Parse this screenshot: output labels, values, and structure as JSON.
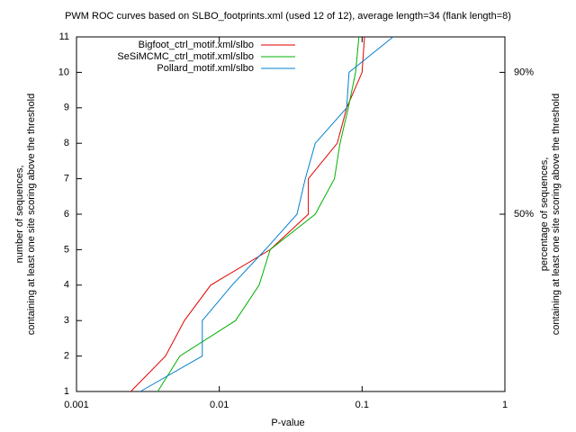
{
  "chart_data": {
    "type": "line",
    "title": "PWM ROC curves based on SLBO_footprints.xml (used 12 of 12), average length=34 (flank length=8)",
    "x_label": "P-value",
    "y_label": [
      "number of sequences,",
      "containing at least one site scoring above the threshold"
    ],
    "y2_label": [
      "percentage of sequences,",
      "containing at least one site scoring above the threshold"
    ],
    "x_log": true,
    "xlim": [
      0.001,
      1
    ],
    "xticks": [
      0.001,
      0.01,
      0.1,
      1
    ],
    "ylim": [
      1,
      11
    ],
    "yticks": [
      1,
      2,
      3,
      4,
      5,
      6,
      7,
      8,
      9,
      10,
      11
    ],
    "y2lim": [
      0,
      100
    ],
    "y2ticks": [
      {
        "value": 50,
        "label": "50%"
      },
      {
        "value": 90,
        "label": "90%"
      }
    ],
    "legend": "top-left",
    "series": [
      {
        "name": "Bigfoot_ctrl_motif.xml/slbo",
        "color": "#e00000",
        "x": [
          0.0024,
          0.0042,
          0.0057,
          0.0087,
          0.0227,
          0.042,
          0.042,
          0.067,
          0.078,
          0.1,
          0.104
        ],
        "values": [
          1,
          2,
          3,
          4,
          5,
          6,
          7,
          8,
          9,
          10,
          11
        ]
      },
      {
        "name": "SeSiMCMC_ctrl_motif.xml/slbo",
        "color": "#00b000",
        "x": [
          0.0037,
          0.0053,
          0.013,
          0.019,
          0.0227,
          0.047,
          0.064,
          0.07,
          0.08,
          0.09,
          0.095
        ],
        "values": [
          1,
          2,
          3,
          4,
          5,
          6,
          7,
          8,
          9,
          10,
          11
        ]
      },
      {
        "name": "Pollard_motif.xml/slbo",
        "color": "#0080d0",
        "x": [
          0.0028,
          0.0076,
          0.0076,
          0.0123,
          0.021,
          0.035,
          0.04,
          0.047,
          0.078,
          0.081,
          0.165
        ],
        "values": [
          1,
          2,
          3,
          4,
          5,
          6,
          7,
          8,
          9,
          10,
          11
        ]
      }
    ]
  }
}
